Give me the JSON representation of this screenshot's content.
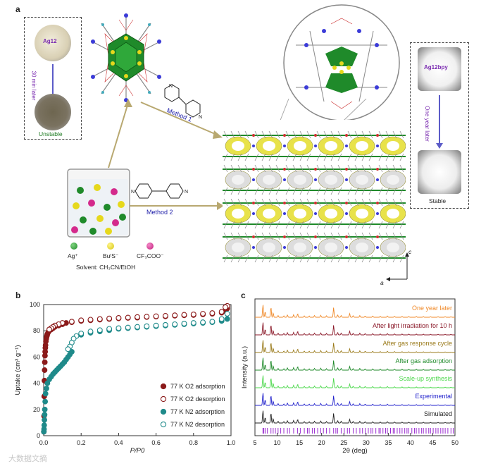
{
  "panel_a": {
    "letter": "a",
    "left_box": {
      "top_label": "Ag12",
      "arrow_label": "30 min later",
      "bottom_label": "Unstable"
    },
    "right_box": {
      "top_label": "Ag12bpy",
      "arrow_label": "One year later",
      "bottom_label": "Stable"
    },
    "method1": "Method 1",
    "method2": "Method 2",
    "legend": {
      "ag": "Ag⁺",
      "bus": "BuᵗS⁻",
      "cf3coo": "CF₃COO⁻",
      "solvent": "Solvent: CH₃CN/EtOH"
    },
    "axes": {
      "c": "c",
      "a": "a"
    },
    "colors": {
      "ag": "#1f8a2a",
      "s": "#e6d81c",
      "tfa": "#d42a8c",
      "pore": "#e8e24a"
    }
  },
  "panel_b": {
    "letter": "b",
    "chart_data": {
      "type": "scatter",
      "xlabel": "P/P0",
      "ylabel": "Uptake (cm³ g⁻¹)",
      "xlim": [
        0,
        1.0
      ],
      "ylim": [
        0,
        100
      ],
      "xticks": [
        "0.0",
        "0.2",
        "0.4",
        "0.6",
        "0.8",
        "1.0"
      ],
      "yticks": [
        "0",
        "20",
        "40",
        "60",
        "80",
        "100"
      ],
      "legend_position": "bottom-right",
      "series": [
        {
          "name": "77 K O2 adsorption",
          "filled": true,
          "color": "#8b1a1a",
          "x": [
            0.001,
            0.002,
            0.003,
            0.004,
            0.005,
            0.006,
            0.007,
            0.008,
            0.009,
            0.01,
            0.012,
            0.014,
            0.016,
            0.018,
            0.02,
            0.025,
            0.03,
            0.04,
            0.05,
            0.06,
            0.08,
            0.1,
            0.12,
            0.15,
            0.2,
            0.25,
            0.3,
            0.35,
            0.4,
            0.45,
            0.5,
            0.55,
            0.6,
            0.65,
            0.7,
            0.75,
            0.8,
            0.85,
            0.9,
            0.95,
            0.97,
            0.98
          ],
          "y": [
            3,
            15,
            30,
            42,
            50,
            56,
            61,
            64,
            67,
            69,
            72,
            74,
            75.5,
            76.5,
            77.5,
            79,
            80,
            81,
            82,
            83,
            84,
            85,
            86,
            86.5,
            87.5,
            88,
            88.5,
            89,
            89.5,
            89.8,
            90,
            90.5,
            90.8,
            91,
            91.5,
            91.8,
            92,
            92.5,
            93,
            93.8,
            95,
            97
          ]
        },
        {
          "name": "77 K O2 desorption",
          "filled": false,
          "color": "#8b1a1a",
          "x": [
            0.98,
            0.97,
            0.95,
            0.9,
            0.85,
            0.8,
            0.75,
            0.7,
            0.65,
            0.6,
            0.55,
            0.5,
            0.45,
            0.4,
            0.35,
            0.3,
            0.25,
            0.2,
            0.15,
            0.1,
            0.08,
            0.06,
            0.05,
            0.04,
            0.03
          ],
          "y": [
            99,
            98,
            94.5,
            93.5,
            93,
            92.5,
            92.2,
            91.8,
            91.4,
            91.1,
            90.8,
            90.5,
            90.1,
            89.8,
            89.4,
            89,
            88.5,
            88,
            87,
            86,
            85,
            84,
            83,
            82,
            81
          ]
        },
        {
          "name": "77 K N2 adsorption",
          "filled": true,
          "color": "#1f8a8a",
          "x": [
            0.001,
            0.002,
            0.003,
            0.004,
            0.005,
            0.006,
            0.008,
            0.01,
            0.015,
            0.02,
            0.03,
            0.04,
            0.05,
            0.06,
            0.07,
            0.08,
            0.09,
            0.1,
            0.11,
            0.12,
            0.13,
            0.14,
            0.15,
            0.2,
            0.25,
            0.3,
            0.35,
            0.4,
            0.45,
            0.5,
            0.55,
            0.6,
            0.65,
            0.7,
            0.75,
            0.8,
            0.85,
            0.9,
            0.95,
            0.98
          ],
          "y": [
            3,
            5,
            8,
            12,
            16,
            20,
            26,
            32,
            36,
            40,
            43,
            45,
            47,
            48.5,
            50,
            51.5,
            53,
            54.5,
            56,
            58,
            60,
            62,
            64,
            77,
            78.5,
            79.5,
            80.5,
            81.5,
            82,
            82.5,
            83,
            83.5,
            84,
            84.5,
            85,
            85.5,
            86,
            86.5,
            87.5,
            89
          ]
        },
        {
          "name": "77 K N2 desorption",
          "filled": false,
          "color": "#1f8a8a",
          "x": [
            0.98,
            0.95,
            0.9,
            0.85,
            0.8,
            0.75,
            0.7,
            0.65,
            0.6,
            0.55,
            0.5,
            0.45,
            0.4,
            0.35,
            0.3,
            0.25,
            0.2,
            0.175,
            0.16,
            0.15,
            0.14,
            0.13
          ],
          "y": [
            93,
            89,
            87,
            86.5,
            86,
            85.5,
            85,
            84.5,
            84,
            83.5,
            83,
            82.5,
            82,
            81.5,
            80.5,
            79.5,
            78,
            76,
            74,
            71,
            68,
            66
          ]
        }
      ]
    }
  },
  "panel_c": {
    "letter": "c",
    "chart_data": {
      "type": "line",
      "xlabel": "2θ (deg)",
      "ylabel": "Intensity (a.u.)",
      "xlim": [
        5,
        50
      ],
      "xticks": [
        "5",
        "10",
        "15",
        "20",
        "25",
        "30",
        "35",
        "40",
        "45",
        "50"
      ],
      "series": [
        {
          "name": "One year later",
          "color": "#f08a2a"
        },
        {
          "name": "After light irradiation for 10 h",
          "color": "#8b1a2a"
        },
        {
          "name": "After gas response cycle",
          "color": "#9a7a1a"
        },
        {
          "name": "After gas adsorption",
          "color": "#1f8a2a"
        },
        {
          "name": "Scale-up synthesis",
          "color": "#4ed84e"
        },
        {
          "name": "Experimental",
          "color": "#2222cc"
        },
        {
          "name": "Simulated",
          "color": "#222222"
        }
      ],
      "peak_positions": [
        6.8,
        7.3,
        8.6,
        9.1,
        10.2,
        11.5,
        12.3,
        13.7,
        14.6,
        16.1,
        17.2,
        18.4,
        19.8,
        21.1,
        22.7,
        23.6,
        24.4,
        26.3,
        27.1,
        28.6,
        29.8,
        31.5,
        33.2,
        34.8,
        36.4,
        38.1,
        39.6,
        41.3,
        42.9,
        44.5,
        46.2,
        47.8,
        49.1
      ],
      "peak_heights": [
        1.0,
        0.45,
        0.8,
        0.35,
        0.15,
        0.12,
        0.18,
        0.2,
        0.28,
        0.12,
        0.1,
        0.14,
        0.16,
        0.12,
        0.78,
        0.2,
        0.14,
        0.3,
        0.12,
        0.14,
        0.1,
        0.1,
        0.08,
        0.1,
        0.08,
        0.07,
        0.06,
        0.07,
        0.06,
        0.05,
        0.05,
        0.05,
        0.04
      ],
      "sim_ticks": [
        6.8,
        7.0,
        7.3,
        7.8,
        8.6,
        9.1,
        9.6,
        10.2,
        10.8,
        11.5,
        12.3,
        12.8,
        13.7,
        14.6,
        15.2,
        16.1,
        16.8,
        17.2,
        17.9,
        18.4,
        19.1,
        19.8,
        20.4,
        21.1,
        21.8,
        22.7,
        23.2,
        23.6,
        24.4,
        25.1,
        25.8,
        26.3,
        27.1,
        27.8,
        28.6,
        29.2,
        29.8,
        30.5,
        31.1,
        31.5,
        32.2,
        32.9,
        33.2,
        33.8,
        34.4,
        34.8,
        35.5,
        36.1,
        36.4,
        37.0,
        37.6,
        38.1,
        38.7,
        39.2,
        39.6,
        40.3,
        40.9,
        41.3,
        41.9,
        42.5,
        42.9,
        43.5,
        44.1,
        44.5,
        45.1,
        45.7,
        46.2,
        46.8,
        47.3,
        47.8,
        48.4,
        49.1,
        49.6
      ]
    }
  },
  "watermark": "大数据文摘"
}
